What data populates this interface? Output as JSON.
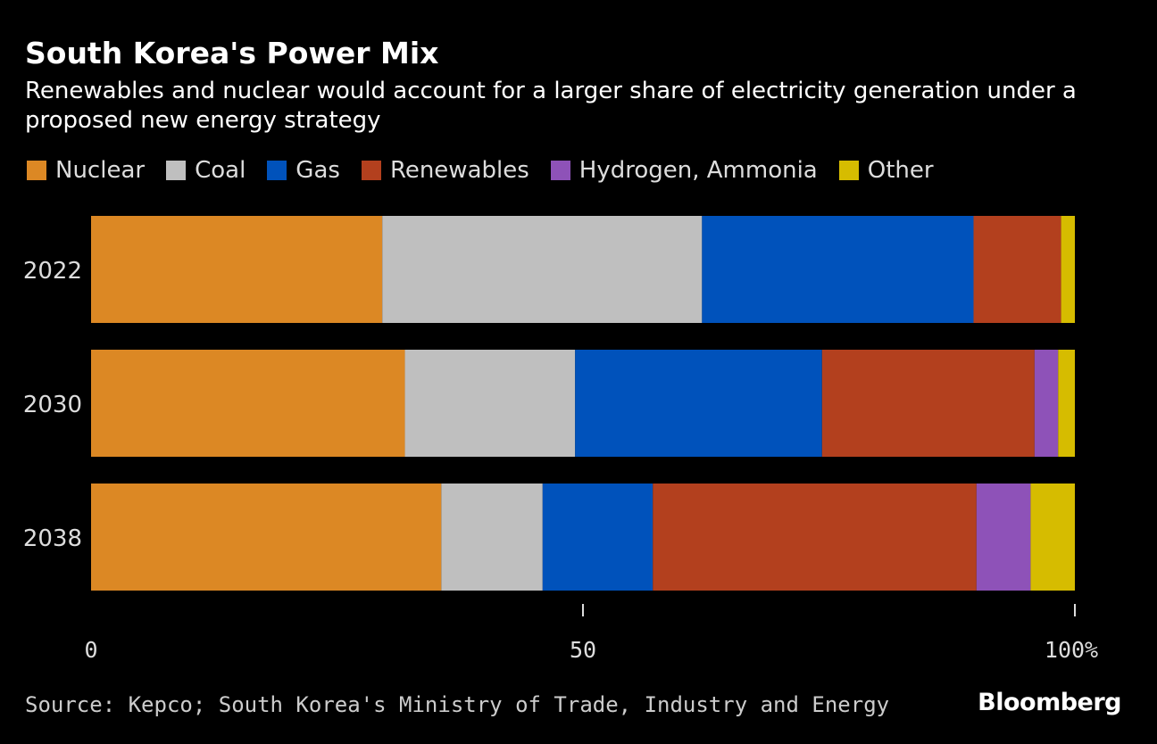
{
  "chart_data": {
    "type": "bar",
    "orientation": "horizontal",
    "stacked": true,
    "title": "South Korea's Power Mix",
    "subtitle": "Renewables and nuclear would account for a larger share of electricity generation under a proposed new energy strategy",
    "categories": [
      "2022",
      "2030",
      "2038"
    ],
    "series": [
      {
        "name": "Nuclear",
        "color": "#dc8824",
        "values": [
          29.6,
          31.9,
          35.6
        ]
      },
      {
        "name": "Coal",
        "color": "#bfbfbf",
        "values": [
          32.5,
          17.3,
          10.3
        ]
      },
      {
        "name": "Gas",
        "color": "#0052bb",
        "values": [
          27.6,
          25.1,
          11.2
        ]
      },
      {
        "name": "Renewables",
        "color": "#b3401e",
        "values": [
          8.9,
          21.6,
          32.9
        ]
      },
      {
        "name": "Hydrogen, Ammonia",
        "color": "#8e52b8",
        "values": [
          0,
          2.4,
          5.5
        ]
      },
      {
        "name": "Other",
        "color": "#d6bc00",
        "values": [
          1.4,
          1.7,
          4.5
        ]
      }
    ],
    "xlim": [
      0,
      100
    ],
    "xticks": [
      {
        "value": 0,
        "label": "0"
      },
      {
        "value": 50,
        "label": "50"
      },
      {
        "value": 100,
        "label": "100%"
      }
    ],
    "legend": "top",
    "grid": false
  },
  "source": "Source: Kepco; South Korea's Ministry of Trade, Industry and Energy",
  "logo": "Bloomberg"
}
